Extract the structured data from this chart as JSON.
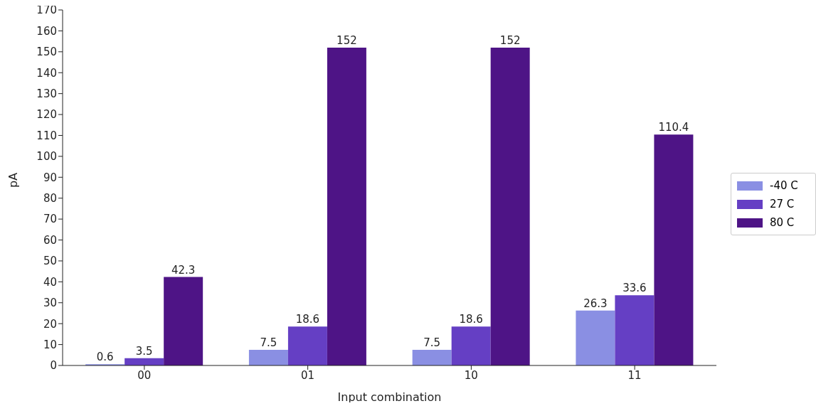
{
  "chart_data": {
    "type": "bar",
    "xlabel": "Input combination",
    "ylabel": "pA",
    "categories": [
      "00",
      "01",
      "10",
      "11"
    ],
    "series": [
      {
        "name": "-40 C",
        "color": "#8a8fe3",
        "values": [
          0.6,
          7.5,
          7.5,
          26.3
        ]
      },
      {
        "name": "27 C",
        "color": "#653fc4",
        "values": [
          3.5,
          18.6,
          18.6,
          33.6
        ]
      },
      {
        "name": "80 C",
        "color": "#4e1486",
        "values": [
          42.3,
          152,
          152,
          110.4
        ]
      }
    ],
    "ylim": [
      0,
      170
    ],
    "yticks": [
      0,
      10,
      20,
      30,
      40,
      50,
      60,
      70,
      80,
      90,
      100,
      110,
      120,
      130,
      140,
      150,
      160,
      170
    ],
    "data_labels": true,
    "legend": "right",
    "grid": false
  }
}
